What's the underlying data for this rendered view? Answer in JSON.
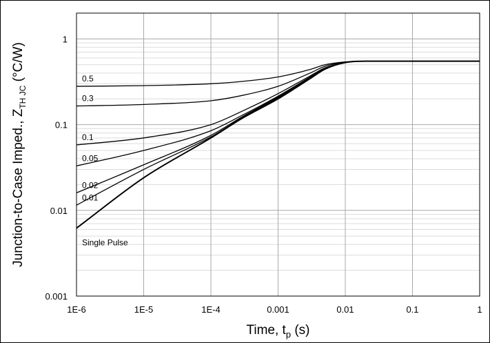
{
  "chart_data": {
    "type": "line",
    "title": "",
    "xlabel_main": "Time, t",
    "xlabel_sub": "p",
    "xlabel_unit": " (s)",
    "ylabel_main": "Junction-to-Case Imped., Z",
    "ylabel_sub": "TH JC",
    "ylabel_unit": " (°C/W)",
    "x_scale": "log",
    "y_scale": "log",
    "xlim": [
      1e-06,
      1
    ],
    "ylim": [
      0.001,
      2
    ],
    "grid": true,
    "x_ticks": [
      {
        "value": 1e-06,
        "label": "1E-6"
      },
      {
        "value": 1e-05,
        "label": "1E-5"
      },
      {
        "value": 0.0001,
        "label": "1E-4"
      },
      {
        "value": 0.001,
        "label": "0.001"
      },
      {
        "value": 0.01,
        "label": "0.01"
      },
      {
        "value": 0.1,
        "label": "0.1"
      },
      {
        "value": 1,
        "label": "1"
      }
    ],
    "y_ticks": [
      {
        "value": 0.001,
        "label": "0.001"
      },
      {
        "value": 0.01,
        "label": "0.01"
      },
      {
        "value": 0.1,
        "label": "0.1"
      },
      {
        "value": 1,
        "label": "1"
      }
    ],
    "series": [
      {
        "name": "0.5",
        "x": [
          1e-06,
          1e-05,
          0.0001,
          0.0003,
          0.001,
          0.003,
          0.005,
          0.01,
          0.02,
          0.1,
          1
        ],
        "y": [
          0.28,
          0.285,
          0.3,
          0.32,
          0.36,
          0.44,
          0.5,
          0.54,
          0.55,
          0.55,
          0.55
        ]
      },
      {
        "name": "0.3",
        "x": [
          1e-06,
          1e-05,
          0.0001,
          0.0003,
          0.001,
          0.003,
          0.005,
          0.01,
          0.02,
          0.1,
          1
        ],
        "y": [
          0.165,
          0.172,
          0.19,
          0.22,
          0.28,
          0.4,
          0.48,
          0.535,
          0.55,
          0.55,
          0.55
        ]
      },
      {
        "name": "0.1",
        "x": [
          1e-06,
          1e-05,
          0.0001,
          0.0003,
          0.001,
          0.003,
          0.005,
          0.01,
          0.02,
          0.1,
          1
        ],
        "y": [
          0.058,
          0.07,
          0.1,
          0.145,
          0.23,
          0.37,
          0.46,
          0.53,
          0.55,
          0.55,
          0.55
        ]
      },
      {
        "name": "0.05",
        "x": [
          1e-06,
          1e-05,
          0.0001,
          0.0003,
          0.001,
          0.003,
          0.005,
          0.01,
          0.02,
          0.1,
          1
        ],
        "y": [
          0.033,
          0.05,
          0.085,
          0.13,
          0.215,
          0.36,
          0.455,
          0.53,
          0.55,
          0.55,
          0.55
        ]
      },
      {
        "name": "0.02",
        "x": [
          1e-06,
          1e-05,
          0.0001,
          0.0003,
          0.001,
          0.003,
          0.005,
          0.01,
          0.02,
          0.1,
          1
        ],
        "y": [
          0.016,
          0.034,
          0.075,
          0.125,
          0.21,
          0.355,
          0.45,
          0.53,
          0.55,
          0.55,
          0.55
        ]
      },
      {
        "name": "0.01",
        "x": [
          1e-06,
          1e-05,
          0.0001,
          0.0003,
          0.001,
          0.003,
          0.005,
          0.01,
          0.02,
          0.1,
          1
        ],
        "y": [
          0.0115,
          0.03,
          0.072,
          0.122,
          0.205,
          0.35,
          0.45,
          0.53,
          0.55,
          0.55,
          0.55
        ]
      },
      {
        "name": "Single Pulse",
        "x": [
          1e-06,
          1e-05,
          0.0001,
          0.0003,
          0.001,
          0.003,
          0.005,
          0.01,
          0.02,
          0.1,
          1
        ],
        "y": [
          0.0062,
          0.024,
          0.07,
          0.12,
          0.2,
          0.345,
          0.445,
          0.53,
          0.55,
          0.55,
          0.55
        ]
      }
    ]
  }
}
